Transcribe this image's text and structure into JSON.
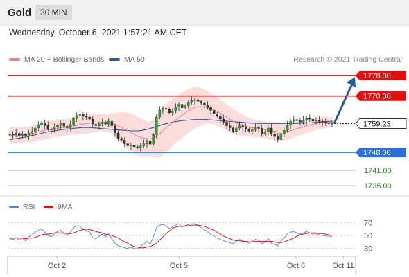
{
  "header": {
    "symbol": "Gold",
    "interval": "30 MIN",
    "datetime": "Wednesday, October 6, 2021 1:57:21 AM CET"
  },
  "legend": {
    "ma20_label": "MA 20 + Bollinger Bands",
    "ma50_label": "MA 50",
    "ma20_color": "#f08080",
    "ma50_color": "#2a5a9a",
    "credit": "Research © 2021 Trading Central"
  },
  "rsi_legend": {
    "rsi_label": "RSI",
    "ma_label": "9MA",
    "rsi_color": "#5b7fd6",
    "ma_color": "#e01010"
  },
  "chart_data": {
    "type": "candlestick",
    "ylim": [
      1731,
      1781
    ],
    "current_price": "1759.23",
    "levels": [
      {
        "label": "1778.00",
        "value": 1778.0,
        "kind": "resistance",
        "color": "#e01010"
      },
      {
        "label": "1770.00",
        "value": 1770.0,
        "kind": "resistance",
        "color": "#e01010"
      },
      {
        "label": "1748.00",
        "value": 1748.0,
        "kind": "support",
        "color": "#2a6fd6"
      },
      {
        "label": "1741.00",
        "value": 1741.0,
        "kind": "support",
        "color": "#2a8a2a"
      },
      {
        "label": "1735.00",
        "value": 1735.0,
        "kind": "support",
        "color": "#2a8a2a"
      }
    ],
    "x_ticks": [
      "Oct 2",
      "Oct 5",
      "Oct 6",
      "Oct 11"
    ],
    "rsi_ticks": [
      "70",
      "50",
      "30"
    ],
    "rsi_ylim": [
      20,
      80
    ],
    "closes": [
      1755.2,
      1754.8,
      1755.5,
      1754.6,
      1755.0,
      1754.3,
      1755.6,
      1756.2,
      1757.5,
      1758.8,
      1759.6,
      1758.5,
      1757.2,
      1756.8,
      1757.9,
      1758.6,
      1759.3,
      1758.2,
      1757.6,
      1758.9,
      1761.2,
      1762.5,
      1762.8,
      1762.2,
      1761.8,
      1761.0,
      1759.0,
      1758.4,
      1759.2,
      1759.8,
      1759.1,
      1760.1,
      1758.4,
      1755.6,
      1753.5,
      1752.8,
      1751.4,
      1750.6,
      1750.9,
      1750.2,
      1749.8,
      1750.5,
      1751.4,
      1752.5,
      1751.2,
      1755.0,
      1761.8,
      1764.5,
      1765.2,
      1764.8,
      1763.5,
      1764.2,
      1765.6,
      1766.8,
      1765.4,
      1766.2,
      1767.5,
      1768.2,
      1768.6,
      1767.9,
      1767.2,
      1766.4,
      1765.5,
      1764.4,
      1763.1,
      1762.2,
      1761.0,
      1759.8,
      1758.4,
      1757.6,
      1756.2,
      1757.5,
      1758.4,
      1757.9,
      1757.1,
      1756.3,
      1756.8,
      1757.7,
      1757.4,
      1755.2,
      1756.0,
      1757.5,
      1755.1,
      1754.2,
      1753.0,
      1755.4,
      1756.6,
      1758.6,
      1760.2,
      1760.8,
      1760.4,
      1759.8,
      1760.5,
      1761.5,
      1761.0,
      1760.2,
      1760.6,
      1760.1,
      1759.8,
      1759.5,
      1759.4,
      1759.23
    ],
    "ma20": [
      1754.5,
      1754.6,
      1754.7,
      1754.8,
      1754.9,
      1755.0,
      1755.1,
      1755.3,
      1755.6,
      1756.0,
      1756.4,
      1756.7,
      1756.9,
      1757.0,
      1757.2,
      1757.4,
      1757.6,
      1757.7,
      1757.8,
      1758.0,
      1758.3,
      1758.6,
      1758.9,
      1759.1,
      1759.3,
      1759.4,
      1759.5,
      1759.6,
      1759.6,
      1759.7,
      1759.7,
      1759.6,
      1759.3,
      1758.9,
      1758.4,
      1757.8,
      1757.1,
      1756.4,
      1755.7,
      1755.0,
      1754.4,
      1753.9,
      1753.6,
      1753.4,
      1753.3,
      1753.6,
      1754.4,
      1755.4,
      1756.5,
      1757.6,
      1758.6,
      1759.6,
      1760.6,
      1761.6,
      1762.5,
      1763.4,
      1764.2,
      1764.9,
      1765.5,
      1765.8,
      1765.9,
      1765.8,
      1765.5,
      1765.1,
      1764.6,
      1764.0,
      1763.3,
      1762.5,
      1761.7,
      1760.9,
      1760.1,
      1759.5,
      1759.0,
      1758.6,
      1758.2,
      1757.9,
      1757.6,
      1757.4,
      1757.2,
      1757.0,
      1756.8,
      1756.7,
      1756.5,
      1756.3,
      1756.1,
      1756.0,
      1756.0,
      1756.2,
      1756.5,
      1756.9,
      1757.3,
      1757.6,
      1758.0,
      1758.4,
      1758.7,
      1759.0,
      1759.3,
      1759.5,
      1759.6,
      1759.7,
      1759.7,
      1759.7
    ],
    "ma50": [
      1753.0,
      1753.2,
      1753.4,
      1753.6,
      1753.8,
      1754.0,
      1754.3,
      1754.6,
      1754.9,
      1755.2,
      1755.5,
      1755.8,
      1756.0,
      1756.2,
      1756.4,
      1756.6,
      1756.8,
      1757.0,
      1757.1,
      1757.2,
      1757.4,
      1757.5,
      1757.6,
      1757.7,
      1757.7,
      1757.7,
      1757.6,
      1757.5,
      1757.4,
      1757.3,
      1757.2,
      1757.1,
      1757.0,
      1756.9,
      1756.8,
      1756.7,
      1756.6,
      1756.5,
      1756.4,
      1756.4,
      1756.4,
      1756.5,
      1756.7,
      1757.0,
      1757.3,
      1757.7,
      1758.1,
      1758.5,
      1758.9,
      1759.2,
      1759.5,
      1759.8,
      1760.0,
      1760.2,
      1760.4,
      1760.5,
      1760.6,
      1760.7,
      1760.8,
      1760.8,
      1760.8,
      1760.8,
      1760.8,
      1760.7,
      1760.6,
      1760.5,
      1760.4,
      1760.3,
      1760.2,
      1760.1,
      1760.0,
      1759.9,
      1759.8,
      1759.7,
      1759.6,
      1759.5,
      1759.4,
      1759.4,
      1759.3,
      1759.3,
      1759.3,
      1759.3,
      1759.3,
      1759.3,
      1759.3,
      1759.3,
      1759.3,
      1759.3,
      1759.3,
      1759.3,
      1759.3,
      1759.4,
      1759.4,
      1759.5,
      1759.5,
      1759.6,
      1759.7,
      1759.8,
      1759.9,
      1760.0,
      1760.1,
      1760.2
    ],
    "bb_width": [
      3.2,
      3.2,
      3.1,
      3.1,
      3.0,
      3.0,
      3.0,
      3.1,
      3.3,
      3.5,
      3.6,
      3.6,
      3.5,
      3.4,
      3.3,
      3.3,
      3.3,
      3.3,
      3.2,
      3.2,
      3.4,
      3.6,
      3.8,
      3.9,
      3.9,
      3.8,
      3.6,
      3.4,
      3.3,
      3.3,
      3.4,
      3.6,
      4.0,
      4.6,
      5.3,
      6.0,
      6.6,
      7.1,
      7.4,
      7.6,
      7.6,
      7.4,
      7.1,
      6.8,
      6.6,
      7.2,
      8.4,
      9.2,
      9.6,
      9.6,
      9.4,
      9.2,
      9.0,
      8.9,
      8.8,
      8.7,
      8.6,
      8.4,
      8.2,
      7.8,
      7.3,
      6.8,
      6.3,
      5.9,
      5.6,
      5.4,
      5.3,
      5.2,
      5.1,
      5.0,
      4.9,
      4.7,
      4.4,
      4.1,
      3.8,
      3.6,
      3.5,
      3.4,
      3.3,
      3.3,
      3.3,
      3.3,
      3.4,
      3.5,
      3.6,
      3.6,
      3.5,
      3.4,
      3.3,
      3.2,
      3.1,
      3.0,
      2.9,
      2.8,
      2.7,
      2.6,
      2.5,
      2.4,
      2.3,
      2.2,
      2.1,
      2.0
    ],
    "rsi": [
      45,
      44,
      47,
      43,
      46,
      42,
      48,
      51,
      55,
      58,
      60,
      55,
      50,
      48,
      53,
      56,
      58,
      53,
      50,
      55,
      62,
      65,
      64,
      60,
      58,
      55,
      47,
      45,
      49,
      52,
      48,
      53,
      45,
      38,
      34,
      33,
      31,
      30,
      32,
      30,
      29,
      33,
      37,
      41,
      36,
      48,
      62,
      66,
      67,
      65,
      61,
      63,
      66,
      68,
      63,
      65,
      67,
      68,
      68,
      65,
      62,
      59,
      56,
      52,
      49,
      46,
      44,
      42,
      40,
      39,
      37,
      41,
      44,
      42,
      40,
      38,
      41,
      44,
      43,
      37,
      40,
      45,
      38,
      36,
      34,
      42,
      46,
      52,
      55,
      56,
      54,
      52,
      54,
      56,
      54,
      52,
      53,
      51,
      50,
      49,
      49,
      48
    ],
    "rsi_ma": [
      46,
      46,
      46,
      46,
      46,
      45,
      46,
      46,
      47,
      49,
      51,
      52,
      52,
      53,
      54,
      54,
      54,
      54,
      53,
      53,
      54,
      56,
      58,
      59,
      60,
      59,
      58,
      56,
      55,
      54,
      52,
      51,
      50,
      48,
      46,
      43,
      40,
      38,
      35,
      33,
      32,
      31,
      31,
      32,
      33,
      35,
      38,
      43,
      48,
      53,
      57,
      61,
      63,
      64,
      64,
      65,
      65,
      66,
      66,
      66,
      65,
      64,
      62,
      60,
      58,
      55,
      52,
      49,
      47,
      45,
      43,
      42,
      42,
      41,
      41,
      40,
      40,
      41,
      41,
      41,
      41,
      41,
      41,
      40,
      39,
      39,
      40,
      42,
      44,
      46,
      49,
      51,
      52,
      53,
      54,
      54,
      54,
      53,
      53,
      52,
      51,
      50
    ]
  }
}
